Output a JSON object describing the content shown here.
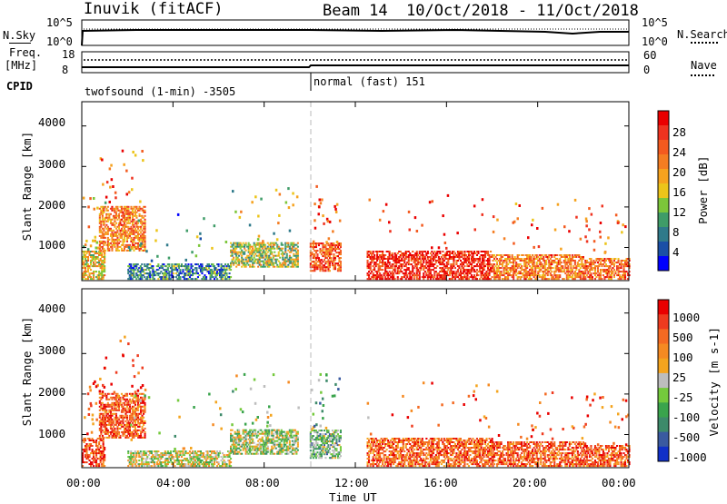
{
  "header": {
    "station": "Inuvik (fitACF)",
    "beam": "Beam 14",
    "date_range": "10/Oct/2018 - 11/Oct/2018"
  },
  "top_panels": {
    "nsky_label": "N.Sky",
    "nsky_ticks": [
      "10^5",
      "10^0"
    ],
    "nsearch_label": "N.Search",
    "nsearch_ticks": [
      "10^5",
      "10^0"
    ],
    "freq_label": "Freq.",
    "freq_unit": "[MHz]",
    "freq_ticks": [
      "18",
      "8"
    ],
    "nave_label": "Nave",
    "nave_ticks": [
      "60",
      "0"
    ],
    "cpid_label": "CPID",
    "cpid_modes": [
      {
        "name": "twofsound (1-min) -3505",
        "start": "00:00"
      },
      {
        "name": "normal (fast) 151",
        "start": "10:00"
      }
    ]
  },
  "chart_data": [
    {
      "type": "heatmap",
      "title": "",
      "ylabel": "Slant Range [km]",
      "xlabel": "",
      "y_ticks": [
        "1000",
        "2000",
        "3000",
        "4000"
      ],
      "ylim": [
        180,
        4600
      ],
      "xlim": [
        "00:00",
        "24:00"
      ],
      "colorbar": {
        "label": "Power [dB]",
        "range": [
          0,
          30
        ],
        "tick_labels": [
          "4",
          "8",
          "12",
          "16",
          "20",
          "24",
          "28"
        ],
        "colors": [
          "#0000ff",
          "#1a4fa6",
          "#2f7a8a",
          "#3f9c68",
          "#7cc63a",
          "#ecc41a",
          "#f6a21e",
          "#f47d22",
          "#f35a1f",
          "#ef3320",
          "#ea0000"
        ]
      },
      "echo_regions": [
        {
          "t_start": "00:00",
          "t_end": "01:00",
          "range_min": 200,
          "range_max": 900,
          "level": 0.55
        },
        {
          "t_start": "00:45",
          "t_end": "02:45",
          "range_min": 900,
          "range_max": 2000,
          "level": 0.7
        },
        {
          "t_start": "02:00",
          "t_end": "06:30",
          "range_min": 200,
          "range_max": 600,
          "level": 0.25
        },
        {
          "t_start": "06:30",
          "t_end": "09:30",
          "range_min": 500,
          "range_max": 1100,
          "level": 0.45
        },
        {
          "t_start": "10:00",
          "t_end": "11:20",
          "range_min": 400,
          "range_max": 1100,
          "level": 0.8
        },
        {
          "t_start": "12:30",
          "t_end": "18:00",
          "range_min": 200,
          "range_max": 900,
          "level": 0.9
        },
        {
          "t_start": "18:00",
          "t_end": "22:00",
          "range_min": 200,
          "range_max": 800,
          "level": 0.7
        },
        {
          "t_start": "22:00",
          "t_end": "24:00",
          "range_min": 200,
          "range_max": 700,
          "level": 0.75
        }
      ]
    },
    {
      "type": "heatmap",
      "title": "",
      "ylabel": "Slant Range [km]",
      "xlabel": "Time UT",
      "x_ticks": [
        "00:00",
        "04:00",
        "08:00",
        "12:00",
        "16:00",
        "20:00",
        "00:00"
      ],
      "y_ticks": [
        "1000",
        "2000",
        "3000",
        "4000"
      ],
      "ylim": [
        180,
        4600
      ],
      "xlim": [
        "00:00",
        "24:00"
      ],
      "colorbar": {
        "label": "Velocity [m s-1]",
        "tick_labels": [
          "1000",
          "500",
          "100",
          "25",
          "-25",
          "-100",
          "-500",
          "-1000"
        ],
        "colors": [
          "#1030c8",
          "#3a5aa0",
          "#3d8a6a",
          "#3aa44c",
          "#74c93c",
          "#bdbdbd",
          "#f4a41e",
          "#f58a22",
          "#f46a22",
          "#ee3b1f",
          "#e90000"
        ]
      },
      "echo_regions": [
        {
          "t_start": "00:00",
          "t_end": "01:00",
          "range_min": 200,
          "range_max": 900,
          "level": 0.85
        },
        {
          "t_start": "00:45",
          "t_end": "02:45",
          "range_min": 900,
          "range_max": 2000,
          "level": 0.8
        },
        {
          "t_start": "02:00",
          "t_end": "06:30",
          "range_min": 200,
          "range_max": 600,
          "level": 0.5
        },
        {
          "t_start": "06:30",
          "t_end": "09:30",
          "range_min": 500,
          "range_max": 1100,
          "level": 0.45
        },
        {
          "t_start": "10:00",
          "t_end": "11:20",
          "range_min": 400,
          "range_max": 1100,
          "level": 0.35
        },
        {
          "t_start": "12:30",
          "t_end": "18:00",
          "range_min": 200,
          "range_max": 900,
          "level": 0.78
        },
        {
          "t_start": "18:00",
          "t_end": "22:00",
          "range_min": 200,
          "range_max": 800,
          "level": 0.8
        },
        {
          "t_start": "22:00",
          "t_end": "24:00",
          "range_min": 200,
          "range_max": 700,
          "level": 0.8
        }
      ]
    }
  ]
}
